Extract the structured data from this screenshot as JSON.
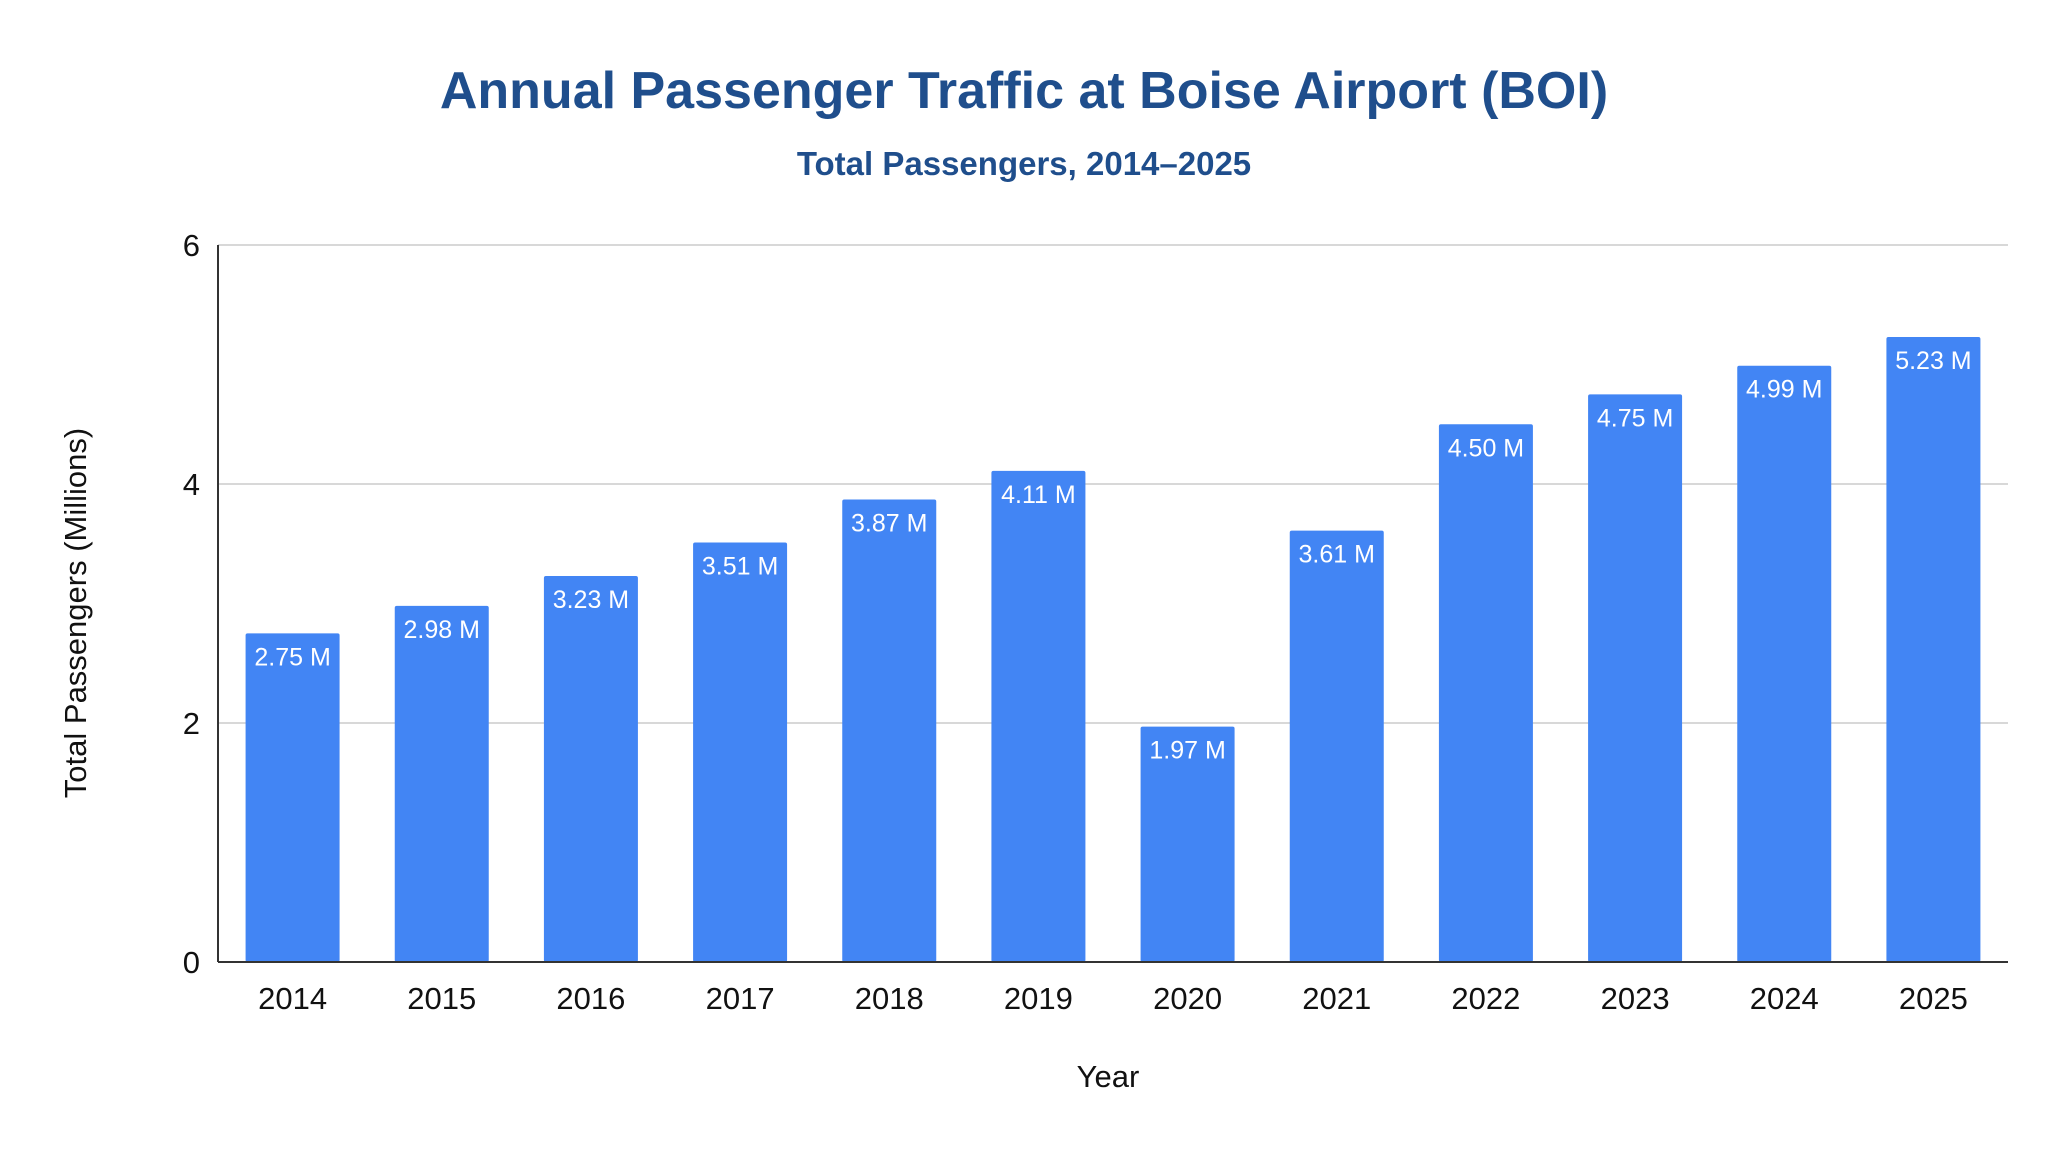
{
  "chart_data": {
    "type": "bar",
    "title": "Annual Passenger Traffic at Boise Airport (BOI)",
    "subtitle": "Total Passengers, 2014–2025",
    "xlabel": "Year",
    "ylabel": "Total Passengers (Millions)",
    "categories": [
      "2014",
      "2015",
      "2016",
      "2017",
      "2018",
      "2019",
      "2020",
      "2021",
      "2022",
      "2023",
      "2024",
      "2025"
    ],
    "values": [
      2.75,
      2.98,
      3.23,
      3.51,
      3.87,
      4.11,
      1.97,
      3.61,
      4.5,
      4.75,
      4.99,
      5.23
    ],
    "data_labels": [
      "2.75 M",
      "2.98 M",
      "3.23 M",
      "3.51 M",
      "3.87 M",
      "4.11 M",
      "1.97 M",
      "3.61 M",
      "4.50 M",
      "4.75 M",
      "4.99 M",
      "5.23 M"
    ],
    "ylim": [
      0,
      6
    ],
    "yticks": [
      0,
      2,
      4,
      6
    ],
    "grid": true,
    "legend": "none",
    "colors": {
      "bar": "#4285F4",
      "title": "#1F4E8C",
      "grid": "#CCCCCC",
      "axis": "#333333",
      "data_label": "#FFFFFF"
    }
  }
}
